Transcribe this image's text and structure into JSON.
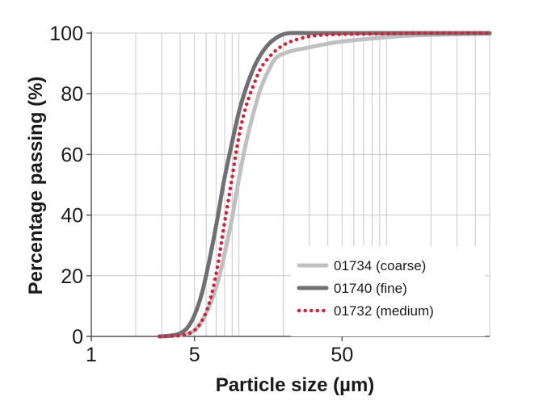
{
  "chart_data": {
    "type": "line",
    "title": "",
    "xlabel": "Particle size (µm)",
    "ylabel": "Percentage passing (%)",
    "xscale": "log",
    "xlim": [
      1,
      500
    ],
    "ylim": [
      0,
      100
    ],
    "x_ticks": [
      {
        "value": 1,
        "label": "1"
      },
      {
        "value": 5,
        "label": "5"
      },
      {
        "value": 50,
        "label": "50"
      }
    ],
    "y_ticks": [
      {
        "value": 0,
        "label": "0"
      },
      {
        "value": 20,
        "label": "20"
      },
      {
        "value": 40,
        "label": "40"
      },
      {
        "value": 60,
        "label": "60"
      },
      {
        "value": 80,
        "label": "80"
      },
      {
        "value": 100,
        "label": "100"
      }
    ],
    "grid": true,
    "legend_position": "bottom-right",
    "series": [
      {
        "name": "01734 (coarse)",
        "color": "#c0c0c0",
        "style": "solid",
        "points": [
          [
            2.9,
            0
          ],
          [
            3.5,
            0.2
          ],
          [
            4.3,
            0.6
          ],
          [
            5.0,
            2
          ],
          [
            5.6,
            5
          ],
          [
            6.3,
            10
          ],
          [
            7.1,
            17
          ],
          [
            7.9,
            26
          ],
          [
            8.9,
            38
          ],
          [
            10,
            52
          ],
          [
            11.2,
            64
          ],
          [
            12.6,
            74
          ],
          [
            14.1,
            82
          ],
          [
            16,
            88
          ],
          [
            18,
            92
          ],
          [
            22.4,
            94
          ],
          [
            28,
            95
          ],
          [
            40,
            96.5
          ],
          [
            56,
            97.5
          ],
          [
            80,
            98.2
          ],
          [
            125,
            99
          ],
          [
            200,
            99.4
          ],
          [
            500,
            99.8
          ]
        ]
      },
      {
        "name": "01740 (fine)",
        "color": "#707072",
        "style": "solid",
        "points": [
          [
            2.9,
            0
          ],
          [
            3.5,
            0.3
          ],
          [
            4.0,
            1
          ],
          [
            4.5,
            3
          ],
          [
            5.0,
            7
          ],
          [
            5.6,
            14
          ],
          [
            6.3,
            25
          ],
          [
            7.1,
            38
          ],
          [
            7.9,
            51
          ],
          [
            8.9,
            63
          ],
          [
            10,
            74
          ],
          [
            11.2,
            82
          ],
          [
            12.6,
            88.5
          ],
          [
            14.1,
            93
          ],
          [
            16,
            96.5
          ],
          [
            18,
            98.5
          ],
          [
            20,
            99.6
          ],
          [
            22.4,
            100
          ],
          [
            30,
            100
          ],
          [
            50,
            100
          ],
          [
            100,
            100
          ],
          [
            500,
            100
          ]
        ]
      },
      {
        "name": "01732 (medium)",
        "color": "#d62038",
        "style": "dotted",
        "points": [
          [
            2.9,
            0
          ],
          [
            3.5,
            0.1
          ],
          [
            4.3,
            0.5
          ],
          [
            5.0,
            2
          ],
          [
            5.6,
            5
          ],
          [
            6.3,
            11
          ],
          [
            7.1,
            22
          ],
          [
            7.9,
            36
          ],
          [
            8.9,
            51
          ],
          [
            10,
            66
          ],
          [
            11.2,
            76
          ],
          [
            12.6,
            83
          ],
          [
            14.1,
            88.5
          ],
          [
            16,
            92
          ],
          [
            18,
            94.5
          ],
          [
            20,
            96
          ],
          [
            22.4,
            97.2
          ],
          [
            28,
            98.6
          ],
          [
            35,
            99.3
          ],
          [
            50,
            99.6
          ],
          [
            100,
            99.8
          ],
          [
            200,
            100
          ],
          [
            500,
            100
          ]
        ]
      }
    ]
  }
}
